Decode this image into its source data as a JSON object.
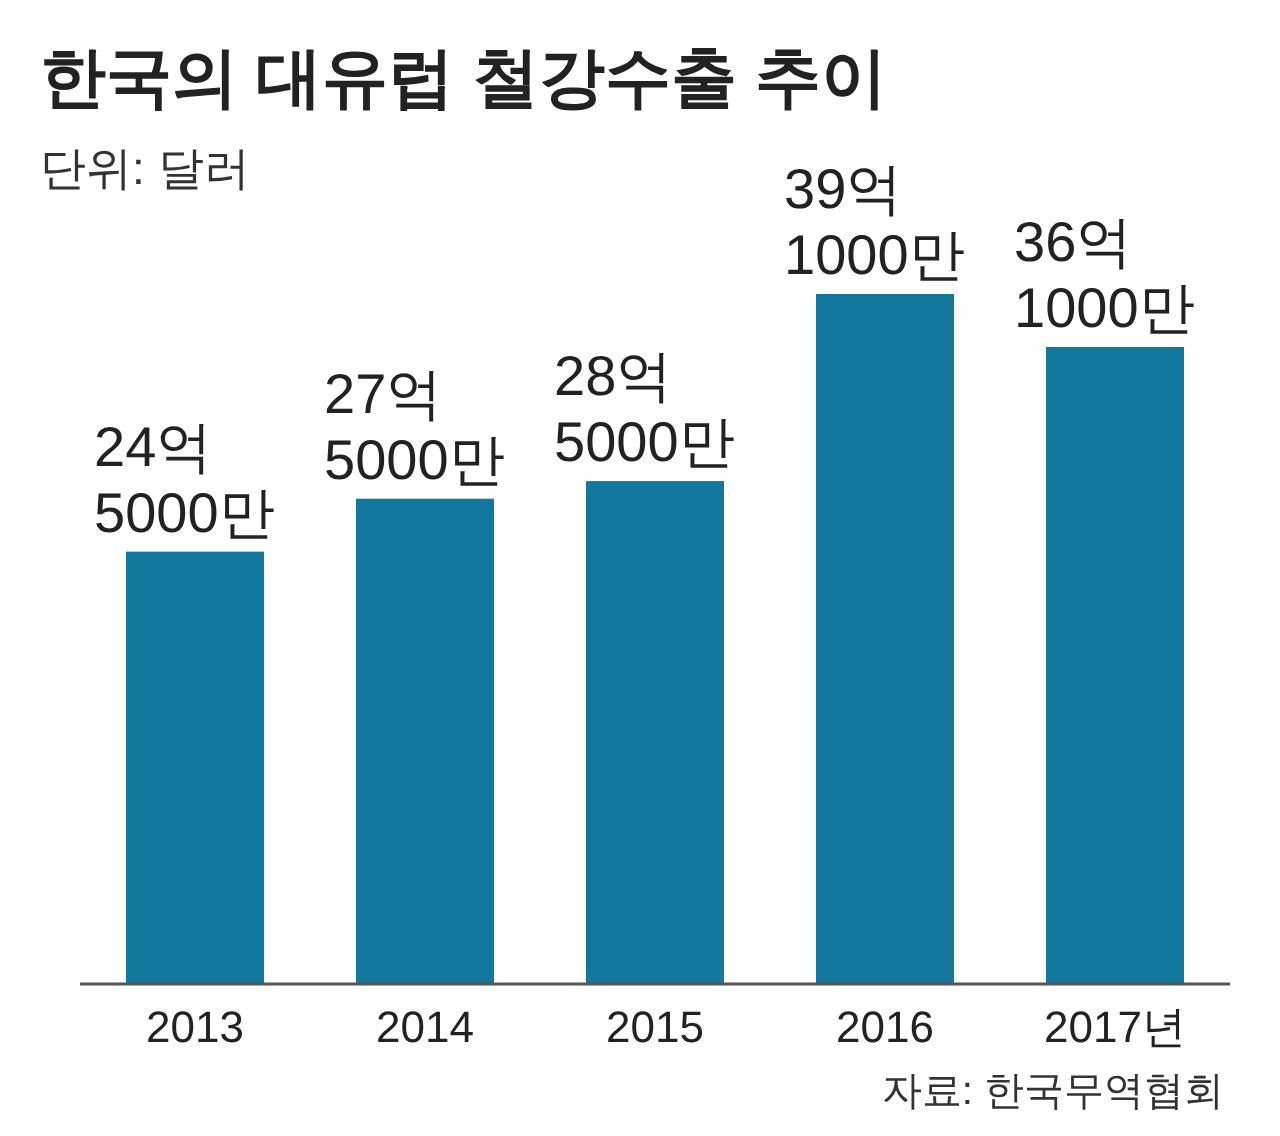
{
  "chart_data": {
    "type": "bar",
    "title": "한국의 대유럽 철강수출 추이",
    "subtitle": "단위: 달러",
    "categories": [
      "2013",
      "2014",
      "2015",
      "2016",
      "2017년"
    ],
    "values": [
      24.5,
      27.5,
      28.5,
      39.1,
      36.1
    ],
    "value_labels": [
      "24억 5000만",
      "27억 5000만",
      "28억 5000만",
      "39억 1000만",
      "36억 1000만"
    ],
    "color": "#13789e",
    "annotations": [
      "자료: 한국무역협회"
    ]
  }
}
